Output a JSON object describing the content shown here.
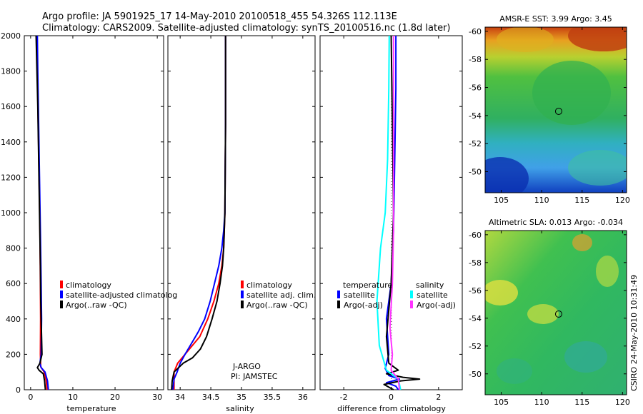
{
  "header": {
    "line1": "Argo profile: JA 5901925_17 14-May-2010 20100518_455 54.326S 112.113E",
    "line2": "Climatology: CARS2009. Satellite-adjusted climatology: synTS_20100516.nc (1.8d later)"
  },
  "watermark": "CSIRO 24-May-2010 10:31:49",
  "colors": {
    "climatology": "#ff0000",
    "satellite": "#0000ff",
    "argo": "#000000",
    "sal_satellite": "#00ffff",
    "sal_argo": "#ff33ff"
  },
  "chart_data": [
    {
      "type": "line",
      "xlabel": "temperature",
      "ylabel": "",
      "xlim": [
        -1.5,
        31.5
      ],
      "ylim": [
        2000,
        0
      ],
      "xticks": [
        0,
        10,
        20,
        30
      ],
      "xtick_labels": [
        "0",
        "10",
        "20",
        "30"
      ],
      "yticks": [
        0,
        200,
        400,
        600,
        800,
        1000,
        1200,
        1400,
        1600,
        1800,
        2000
      ],
      "ytick_labels": [
        "0",
        "200",
        "400",
        "600",
        "800",
        "1000",
        "1200",
        "1400",
        "1600",
        "1800",
        "2000"
      ],
      "legend": [
        "climatology",
        "satellite-adjusted climatolog",
        "Argo(..raw -QC)"
      ],
      "series": [
        {
          "key": "climatology",
          "color": "#ff0000",
          "points": [
            [
              3.9,
              0
            ],
            [
              3.7,
              50
            ],
            [
              3.2,
              100
            ],
            [
              2.4,
              130
            ],
            [
              2.3,
              200
            ],
            [
              2.35,
              400
            ],
            [
              2.3,
              600
            ],
            [
              2.2,
              900
            ],
            [
              2.0,
              1200
            ],
            [
              1.8,
              1500
            ],
            [
              1.6,
              1800
            ],
            [
              1.5,
              2000
            ]
          ]
        },
        {
          "key": "satellite",
          "color": "#0000ff",
          "points": [
            [
              4.2,
              0
            ],
            [
              4.0,
              50
            ],
            [
              3.4,
              100
            ],
            [
              2.5,
              125
            ],
            [
              2.2,
              150
            ],
            [
              2.5,
              200
            ],
            [
              2.6,
              400
            ],
            [
              2.5,
              600
            ],
            [
              2.3,
              900
            ],
            [
              2.1,
              1200
            ],
            [
              1.9,
              1500
            ],
            [
              1.7,
              1800
            ],
            [
              1.6,
              2000
            ]
          ]
        },
        {
          "key": "argo",
          "color": "#000000",
          "points": [
            [
              3.5,
              0
            ],
            [
              3.3,
              50
            ],
            [
              3.0,
              90
            ],
            [
              2.0,
              110
            ],
            [
              1.6,
              125
            ],
            [
              2.2,
              150
            ],
            [
              2.7,
              200
            ],
            [
              2.6,
              300
            ],
            [
              2.4,
              500
            ],
            [
              2.3,
              700
            ],
            [
              2.1,
              1000
            ],
            [
              1.9,
              1300
            ],
            [
              1.7,
              1600
            ],
            [
              1.5,
              1800
            ],
            [
              1.3,
              2000
            ]
          ]
        }
      ]
    },
    {
      "type": "line",
      "xlabel": "salinity",
      "ylabel": "",
      "xlim": [
        33.8,
        36.2
      ],
      "ylim": [
        2000,
        0
      ],
      "xticks": [
        34,
        34.5,
        35,
        35.5,
        36
      ],
      "xtick_labels": [
        "34",
        "34.5",
        "35",
        "35.5",
        "36"
      ],
      "legend": [
        "climatology",
        "satellite adj. clim.",
        "Argo(..raw -QC)"
      ],
      "annotations": [
        "J-ARGO",
        "PI: JAMSTEC"
      ],
      "series": [
        {
          "key": "climatology",
          "color": "#ff0000",
          "points": [
            [
              33.9,
              0
            ],
            [
              33.9,
              100
            ],
            [
              33.96,
              150
            ],
            [
              34.08,
              200
            ],
            [
              34.2,
              250
            ],
            [
              34.32,
              300
            ],
            [
              34.45,
              400
            ],
            [
              34.55,
              500
            ],
            [
              34.63,
              600
            ],
            [
              34.68,
              700
            ],
            [
              34.71,
              800
            ],
            [
              34.73,
              1000
            ],
            [
              34.74,
              1500
            ],
            [
              34.74,
              2000
            ]
          ]
        },
        {
          "key": "satellite",
          "color": "#0000ff",
          "points": [
            [
              33.88,
              0
            ],
            [
              33.9,
              60
            ],
            [
              33.95,
              100
            ],
            [
              34.0,
              150
            ],
            [
              34.08,
              200
            ],
            [
              34.2,
              270
            ],
            [
              34.3,
              330
            ],
            [
              34.4,
              400
            ],
            [
              34.49,
              500
            ],
            [
              34.56,
              600
            ],
            [
              34.63,
              700
            ],
            [
              34.68,
              800
            ],
            [
              34.71,
              900
            ],
            [
              34.73,
              1000
            ],
            [
              34.74,
              1500
            ],
            [
              34.74,
              2000
            ]
          ]
        },
        {
          "key": "argo",
          "color": "#000000",
          "points": [
            [
              33.86,
              0
            ],
            [
              33.87,
              50
            ],
            [
              33.9,
              100
            ],
            [
              34.05,
              150
            ],
            [
              34.2,
              180
            ],
            [
              34.33,
              230
            ],
            [
              34.43,
              300
            ],
            [
              34.52,
              400
            ],
            [
              34.6,
              500
            ],
            [
              34.65,
              600
            ],
            [
              34.69,
              700
            ],
            [
              34.71,
              800
            ],
            [
              34.73,
              1000
            ],
            [
              34.74,
              1500
            ],
            [
              34.74,
              2000
            ]
          ]
        }
      ]
    },
    {
      "type": "line",
      "xlabel": "difference from climatology",
      "ylabel": "",
      "xlim": [
        -3,
        3
      ],
      "ylim": [
        2000,
        0
      ],
      "xticks": [
        -2,
        0,
        2
      ],
      "xtick_labels": [
        "-2",
        "0",
        "2"
      ],
      "legend_title_left": "temperature",
      "legend_title_right": "salinity",
      "legend_left": [
        "satellite",
        "Argo(-adj)"
      ],
      "legend_right": [
        "satellite",
        "Argo(-adj)"
      ],
      "series": [
        {
          "key": "temp_satellite",
          "color": "#0000ff",
          "points": [
            [
              0.3,
              0
            ],
            [
              0.2,
              20
            ],
            [
              -0.2,
              40
            ],
            [
              0.35,
              60
            ],
            [
              -0.1,
              80
            ],
            [
              -0.25,
              120
            ],
            [
              -0.1,
              200
            ],
            [
              -0.2,
              400
            ],
            [
              0.0,
              600
            ],
            [
              0.1,
              900
            ],
            [
              0.15,
              1300
            ],
            [
              0.2,
              1700
            ],
            [
              0.2,
              2000
            ]
          ]
        },
        {
          "key": "temp_argo",
          "color": "#000000",
          "points": [
            [
              0.1,
              0
            ],
            [
              -0.3,
              30
            ],
            [
              0.4,
              50
            ],
            [
              1.2,
              60
            ],
            [
              0.5,
              70
            ],
            [
              -0.2,
              90
            ],
            [
              0.3,
              110
            ],
            [
              -0.1,
              150
            ],
            [
              -0.2,
              300
            ],
            [
              0.0,
              600
            ],
            [
              0.1,
              1000
            ],
            [
              0.05,
              1500
            ],
            [
              0.0,
              2000
            ]
          ]
        },
        {
          "key": "sal_satellite",
          "color": "#00ffff",
          "points": [
            [
              0.4,
              0
            ],
            [
              0.3,
              60
            ],
            [
              -0.2,
              110
            ],
            [
              -0.5,
              250
            ],
            [
              -0.6,
              500
            ],
            [
              -0.45,
              800
            ],
            [
              -0.25,
              1000
            ],
            [
              -0.15,
              1300
            ],
            [
              -0.1,
              1700
            ],
            [
              -0.08,
              2000
            ]
          ]
        },
        {
          "key": "sal_argo",
          "color": "#ff33ff",
          "points": [
            [
              0.35,
              0
            ],
            [
              0.3,
              60
            ],
            [
              0.0,
              110
            ],
            [
              0.05,
              200
            ],
            [
              -0.05,
              350
            ],
            [
              0.05,
              600
            ],
            [
              0.1,
              900
            ],
            [
              0.1,
              1300
            ],
            [
              0.1,
              2000
            ]
          ]
        }
      ]
    },
    {
      "type": "heatmap",
      "title": "AMSR-E SST: 3.99 Argo: 3.45",
      "xlim": [
        103,
        120.5
      ],
      "ylim": [
        -60.3,
        -48.5
      ],
      "xticks": [
        105,
        110,
        115,
        120
      ],
      "xtick_labels": [
        "105",
        "110",
        "115",
        "120"
      ],
      "yticks": [
        -50,
        -52,
        -54,
        -56,
        -58,
        -60
      ],
      "ytick_labels": [
        "-50",
        "-52",
        "-54",
        "-56",
        "-58",
        "-60"
      ],
      "marker": [
        112.1,
        -54.3
      ]
    },
    {
      "type": "heatmap",
      "title": "Altimetric SLA: 0.013 Argo: -0.034",
      "xlim": [
        103,
        120.5
      ],
      "ylim": [
        -60.3,
        -48.5
      ],
      "xticks": [
        105,
        110,
        115,
        120
      ],
      "xtick_labels": [
        "105",
        "110",
        "115",
        "120"
      ],
      "yticks": [
        -50,
        -52,
        -54,
        -56,
        -58,
        -60
      ],
      "ytick_labels": [
        "-50",
        "-52",
        "-54",
        "-56",
        "-58",
        "-60"
      ],
      "marker": [
        112.1,
        -54.3
      ]
    }
  ]
}
